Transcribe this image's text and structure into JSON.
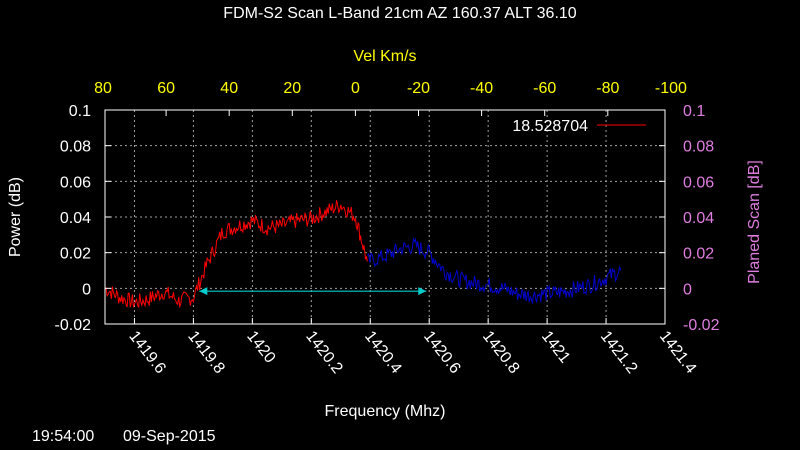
{
  "chart_data": {
    "type": "line",
    "title": "FDM-S2 Scan L-Band 21cm AZ 160.37  ALT 36.10",
    "xlabel": "Frequency (Mhz)",
    "ylabel": "Power (dB)",
    "y2label": "Planed Scan [dB]",
    "x2label": "Vel Km/s",
    "xlim": [
      1419.5,
      1421.4
    ],
    "ylim": [
      -0.02,
      0.1
    ],
    "x_ticks": [
      "1419.6",
      "1419.8",
      "1420",
      "1420.2",
      "1420.4",
      "1420.6",
      "1420.8",
      "1421",
      "1421.2",
      "1421.4"
    ],
    "y_ticks": [
      "-0.02",
      "0",
      "0.02",
      "0.04",
      "0.06",
      "0.08",
      "0.1"
    ],
    "y2_ticks": [
      "-0.02",
      "0",
      "0.02",
      "0.04",
      "0.06",
      "0.08",
      "0.1"
    ],
    "vel_ticks": [
      "80",
      "60",
      "40",
      "20",
      "0",
      "-20",
      "-40",
      "-60",
      "-80",
      "-100"
    ],
    "grid": true,
    "legend_position": "top-right",
    "series": [
      {
        "name": "18.528704",
        "color": "#ff0000",
        "x": [
          1419.5,
          1419.55,
          1419.6,
          1419.65,
          1419.7,
          1419.75,
          1419.8,
          1419.85,
          1419.9,
          1419.95,
          1420.0,
          1420.05,
          1420.1,
          1420.15,
          1420.2,
          1420.25,
          1420.3,
          1420.35,
          1420.39
        ],
        "values": [
          0.0,
          -0.005,
          -0.008,
          -0.006,
          -0.002,
          -0.007,
          -0.005,
          0.015,
          0.032,
          0.035,
          0.038,
          0.034,
          0.035,
          0.038,
          0.039,
          0.043,
          0.047,
          0.04,
          0.015
        ]
      },
      {
        "color": "#0000cc",
        "x": [
          1420.39,
          1420.45,
          1420.5,
          1420.55,
          1420.6,
          1420.65,
          1420.7,
          1420.75,
          1420.8,
          1420.85,
          1420.9,
          1420.95,
          1421.0,
          1421.05,
          1421.1,
          1421.15,
          1421.2,
          1421.25
        ],
        "values": [
          0.015,
          0.018,
          0.022,
          0.024,
          0.02,
          0.01,
          0.005,
          0.003,
          0.002,
          0.0,
          -0.003,
          -0.004,
          -0.003,
          -0.002,
          0.0,
          0.002,
          0.006,
          0.01
        ]
      }
    ],
    "annotations": [
      {
        "type": "double-arrow",
        "color": "#00cccc",
        "x_start": 1419.82,
        "x_end": 1420.59,
        "y": -0.01
      }
    ]
  },
  "footer": {
    "time": "19:54:00",
    "date": "09-Sep-2015"
  }
}
